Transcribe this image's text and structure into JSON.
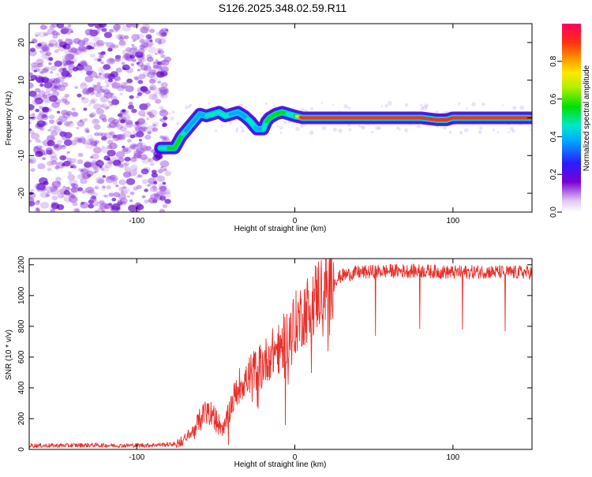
{
  "title": "S126.2025.348.02.59.R11",
  "colors": {
    "snr_line": "#e8302a",
    "frame": "#000000",
    "noise": "#8a2be2"
  },
  "chart_data": [
    {
      "type": "heatmap",
      "name": "spectrogram",
      "xlabel": "Height of straight line (km)",
      "ylabel": "Frequency (Hz)",
      "xlim": [
        -168,
        150
      ],
      "ylim": [
        -25,
        25
      ],
      "x_ticks": [
        -100,
        0,
        100
      ],
      "y_ticks": [
        -20,
        -10,
        0,
        10,
        20
      ],
      "colorbar": {
        "label": "Normalized spectral amplitude",
        "range": [
          0,
          1
        ],
        "ticks": [
          "0.0",
          "0.2",
          "0.4",
          "0.6",
          "0.8"
        ],
        "tick_values": [
          0,
          0.2,
          0.4,
          0.6,
          0.8
        ]
      },
      "noise_region_km": [
        -168,
        -80
      ],
      "tone_track": {
        "x": [
          -85,
          -80,
          -76,
          -72,
          -68,
          -64,
          -60,
          -56,
          -52,
          -48,
          -44,
          -40,
          -36,
          -32,
          -28,
          -24,
          -22,
          -20,
          -18,
          -16,
          -12,
          -8,
          -4,
          0,
          5,
          20,
          40,
          60,
          80,
          90,
          96,
          100,
          110,
          130,
          150
        ],
        "freq_hz": [
          -8,
          -8,
          -8,
          -5,
          -3,
          -1,
          1,
          0.5,
          1,
          1.5,
          0.5,
          1,
          1.5,
          0.5,
          -1,
          -3,
          -3,
          -3,
          -1,
          0,
          1,
          1.5,
          1,
          0.5,
          0,
          0,
          0,
          0,
          0,
          -0.5,
          -0.5,
          0,
          0,
          0,
          0
        ],
        "amplitude": [
          0.5,
          0.55,
          0.6,
          0.6,
          0.45,
          0.45,
          0.4,
          0.45,
          0.5,
          0.5,
          0.5,
          0.45,
          0.4,
          0.4,
          0.5,
          0.45,
          0.45,
          0.45,
          0.55,
          0.6,
          0.6,
          0.6,
          0.55,
          0.55,
          0.95,
          0.95,
          0.95,
          0.95,
          0.95,
          0.9,
          0.9,
          0.95,
          0.95,
          0.95,
          0.95
        ]
      }
    },
    {
      "type": "line",
      "name": "snr",
      "xlabel": "Height of straight line (km)",
      "ylabel": "SNR (10 * v/v)",
      "xlim": [
        -168,
        150
      ],
      "ylim": [
        0,
        1240
      ],
      "x_ticks": [
        -100,
        0,
        100
      ],
      "y_ticks": [
        0,
        200,
        400,
        600,
        800,
        1000,
        1200
      ],
      "series": [
        {
          "name": "SNR",
          "x": [
            -168,
            -150,
            -130,
            -110,
            -90,
            -75,
            -70,
            -65,
            -60,
            -55,
            -50,
            -45,
            -40,
            -35,
            -30,
            -25,
            -20,
            -15,
            -10,
            -5,
            0,
            5,
            10,
            15,
            20,
            25,
            30,
            40,
            60,
            80,
            100,
            120,
            140,
            150
          ],
          "values": [
            25,
            25,
            28,
            25,
            28,
            35,
            60,
            110,
            200,
            270,
            200,
            130,
            300,
            420,
            470,
            520,
            560,
            620,
            660,
            730,
            820,
            880,
            940,
            1020,
            1070,
            1100,
            1130,
            1150,
            1160,
            1160,
            1150,
            1155,
            1150,
            1150
          ],
          "dips": [
            {
              "x": -42,
              "value": 30
            },
            {
              "x": -6,
              "value": 160
            },
            {
              "x": 21,
              "value": 640
            },
            {
              "x": 51,
              "value": 740
            },
            {
              "x": 79,
              "value": 785
            },
            {
              "x": 106,
              "value": 780
            },
            {
              "x": 133,
              "value": 770
            }
          ],
          "color": "#e8302a"
        }
      ]
    }
  ]
}
